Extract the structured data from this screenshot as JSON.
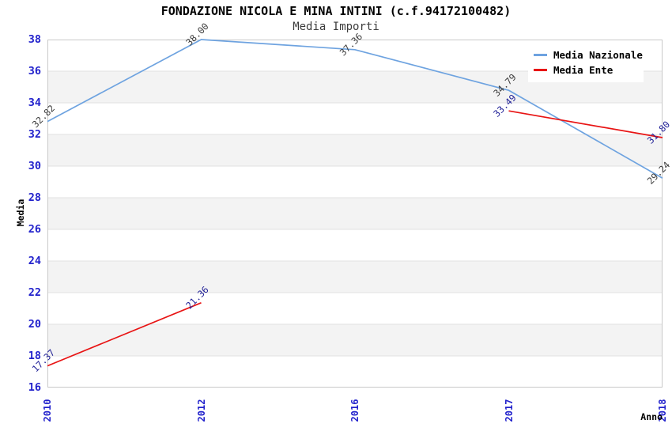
{
  "chart_data": {
    "type": "line",
    "title": "FONDAZIONE NICOLA E MINA INTINI (c.f.94172100482)",
    "subtitle": "Media Importi",
    "xlabel": "Anno",
    "ylabel": "Media",
    "categories": [
      "2010",
      "2012",
      "2016",
      "2017",
      "2018"
    ],
    "series": [
      {
        "name": "Media Nazionale",
        "color": "#6EA3E0",
        "label_color": "#3C3C3C",
        "values": [
          32.82,
          38.0,
          37.36,
          34.79,
          29.24
        ]
      },
      {
        "name": "Media Ente",
        "color": "#E81414",
        "label_color": "#1F1F96",
        "values": [
          17.37,
          21.36,
          null,
          33.49,
          31.8
        ]
      }
    ],
    "ylim": [
      16,
      38
    ],
    "ytick_step": 2,
    "yticks": [
      16,
      18,
      20,
      22,
      24,
      26,
      28,
      30,
      32,
      34,
      36,
      38
    ],
    "grid": "horizontal-bands",
    "legend_position": "top-right",
    "colors": {
      "tick_label": "#2222CC",
      "band": "#F3F3F3",
      "band_edge": "#E2E2E2",
      "frame": "#C9C9C9",
      "background": "#FFFFFF"
    }
  }
}
